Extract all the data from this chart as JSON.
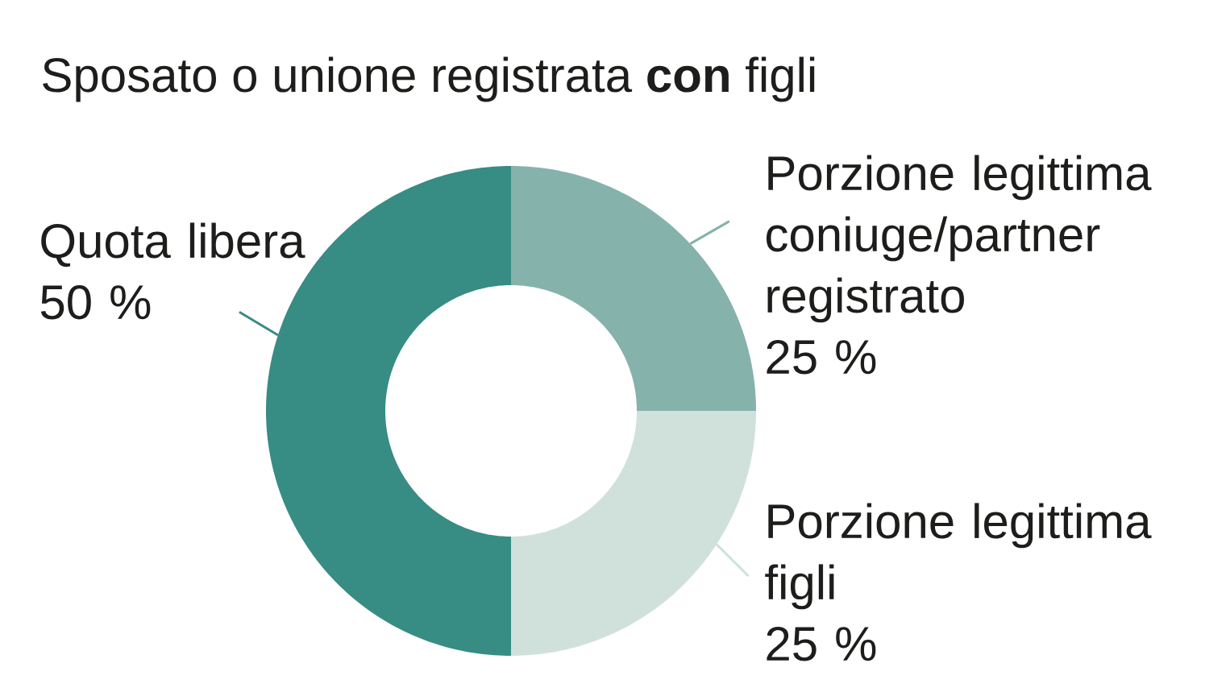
{
  "chart_data": {
    "type": "donut",
    "title": "Sposato o unione registrata **con** figli",
    "categories": [
      "Porzione legittima coniuge/partner registrato",
      "Porzione legittima figli",
      "Quota libera"
    ],
    "values": [
      25,
      25,
      50
    ],
    "colors": [
      "#86b2ac",
      "#d0e1dc",
      "#378c83"
    ],
    "value_labels": [
      "25 %",
      "25 %",
      "50 %"
    ]
  }
}
